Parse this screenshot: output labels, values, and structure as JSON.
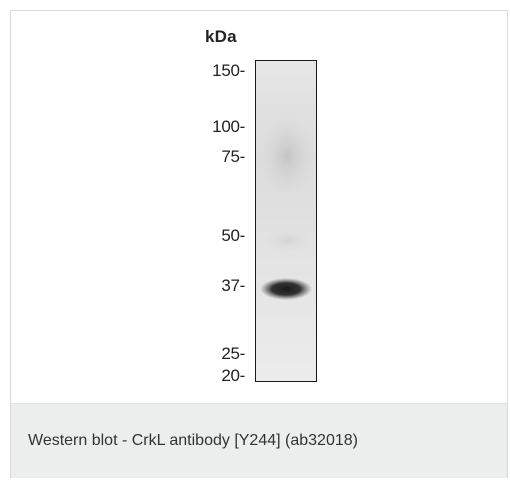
{
  "figure": {
    "unit_label": "kDa",
    "markers": [
      {
        "label": "150-",
        "kda": 150
      },
      {
        "label": "100-",
        "kda": 100
      },
      {
        "label": "75-",
        "kda": 75
      },
      {
        "label": "50-",
        "kda": 50
      },
      {
        "label": "37-",
        "kda": 37
      },
      {
        "label": "25-",
        "kda": 25
      },
      {
        "label": "20-",
        "kda": 20
      }
    ]
  },
  "caption": {
    "text": "Western blot - CrkL antibody [Y244] (ab32018)"
  }
}
